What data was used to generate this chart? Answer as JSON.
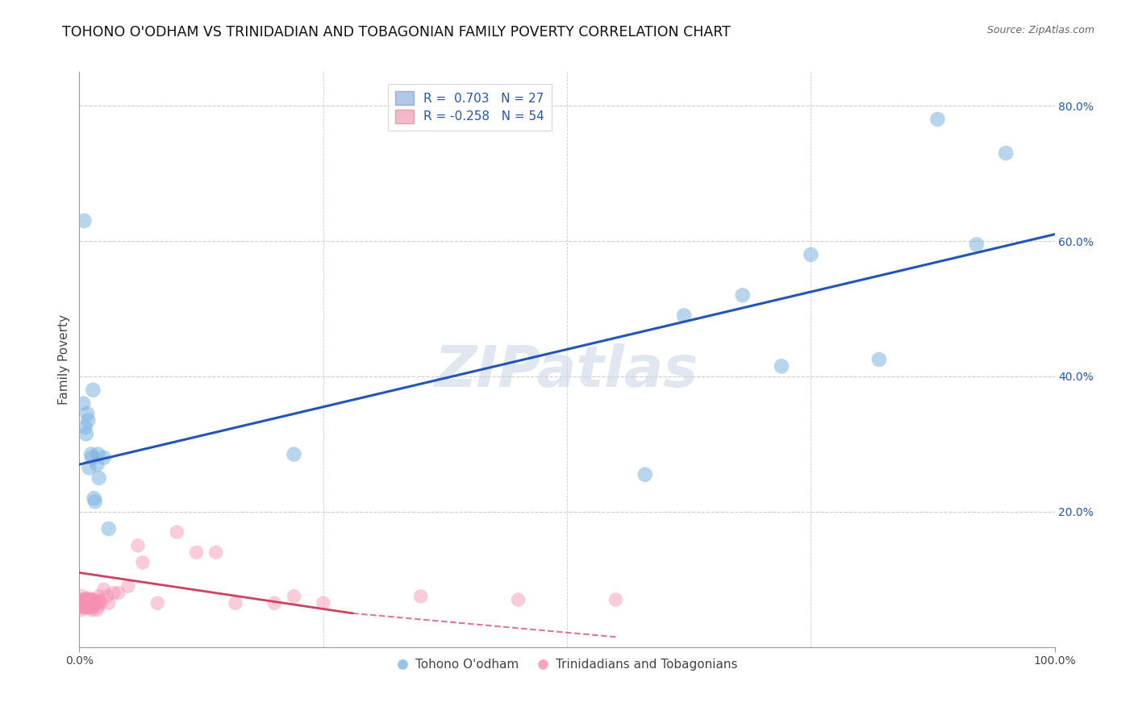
{
  "title": "TOHONO O'ODHAM VS TRINIDADIAN AND TOBAGONIAN FAMILY POVERTY CORRELATION CHART",
  "source": "Source: ZipAtlas.com",
  "ylabel": "Family Poverty",
  "xlim": [
    0,
    1.0
  ],
  "ylim": [
    0,
    0.85
  ],
  "yticks": [
    0.0,
    0.2,
    0.4,
    0.6,
    0.8
  ],
  "ytick_labels": [
    "",
    "20.0%",
    "40.0%",
    "60.0%",
    "80.0%"
  ],
  "xtick_labels": [
    "0.0%",
    "100.0%"
  ],
  "xtick_vals": [
    0.0,
    1.0
  ],
  "legend1_r": "0.703",
  "legend1_n": "27",
  "legend2_r": "-0.258",
  "legend2_n": "54",
  "legend1_color": "#adc8e8",
  "legend2_color": "#f5b8cb",
  "blue_color": "#7fb3e0",
  "pink_color": "#f48fb1",
  "trendline_blue": "#2255bb",
  "trendline_pink": "#d04060",
  "watermark": "ZIPatlas",
  "blue_points_x": [
    0.004,
    0.006,
    0.008,
    0.01,
    0.012,
    0.014,
    0.016,
    0.018,
    0.02,
    0.025,
    0.005,
    0.009,
    0.013,
    0.019,
    0.007,
    0.22,
    0.58,
    0.62,
    0.68,
    0.72,
    0.75,
    0.82,
    0.88,
    0.92,
    0.95,
    0.015,
    0.03
  ],
  "blue_points_y": [
    0.36,
    0.325,
    0.345,
    0.265,
    0.285,
    0.38,
    0.215,
    0.27,
    0.25,
    0.28,
    0.63,
    0.335,
    0.28,
    0.285,
    0.315,
    0.285,
    0.255,
    0.49,
    0.52,
    0.415,
    0.58,
    0.425,
    0.78,
    0.595,
    0.73,
    0.22,
    0.175
  ],
  "pink_points_x": [
    0.0,
    0.001,
    0.002,
    0.002,
    0.003,
    0.003,
    0.004,
    0.004,
    0.005,
    0.005,
    0.006,
    0.006,
    0.007,
    0.007,
    0.008,
    0.008,
    0.009,
    0.009,
    0.01,
    0.01,
    0.011,
    0.011,
    0.012,
    0.012,
    0.013,
    0.013,
    0.014,
    0.015,
    0.016,
    0.017,
    0.018,
    0.019,
    0.02,
    0.021,
    0.022,
    0.025,
    0.028,
    0.03,
    0.035,
    0.04,
    0.05,
    0.06,
    0.065,
    0.08,
    0.1,
    0.12,
    0.14,
    0.16,
    0.2,
    0.22,
    0.25,
    0.35,
    0.45,
    0.55
  ],
  "pink_points_y": [
    0.065,
    0.06,
    0.055,
    0.07,
    0.065,
    0.075,
    0.06,
    0.07,
    0.058,
    0.068,
    0.06,
    0.07,
    0.065,
    0.072,
    0.07,
    0.062,
    0.058,
    0.065,
    0.06,
    0.068,
    0.065,
    0.072,
    0.07,
    0.058,
    0.055,
    0.065,
    0.062,
    0.07,
    0.068,
    0.065,
    0.055,
    0.06,
    0.075,
    0.068,
    0.065,
    0.085,
    0.075,
    0.065,
    0.08,
    0.08,
    0.09,
    0.15,
    0.125,
    0.065,
    0.17,
    0.14,
    0.14,
    0.065,
    0.065,
    0.075,
    0.065,
    0.075,
    0.07,
    0.07
  ],
  "blue_trendline_x0": 0.0,
  "blue_trendline_y0": 0.27,
  "blue_trendline_x1": 1.0,
  "blue_trendline_y1": 0.61,
  "pink_trendline_x0": 0.0,
  "pink_trendline_y0": 0.11,
  "pink_trendline_solid_x1": 0.28,
  "pink_trendline_solid_y1": 0.05,
  "pink_trendline_dash_x1": 0.55,
  "pink_trendline_dash_y1": 0.015,
  "grid_color": "#cccccc",
  "grid_style": "--",
  "spine_color": "#999999",
  "bg_color": "#ffffff",
  "watermark_color": "#ccd8e8",
  "watermark_alpha": 0.6
}
